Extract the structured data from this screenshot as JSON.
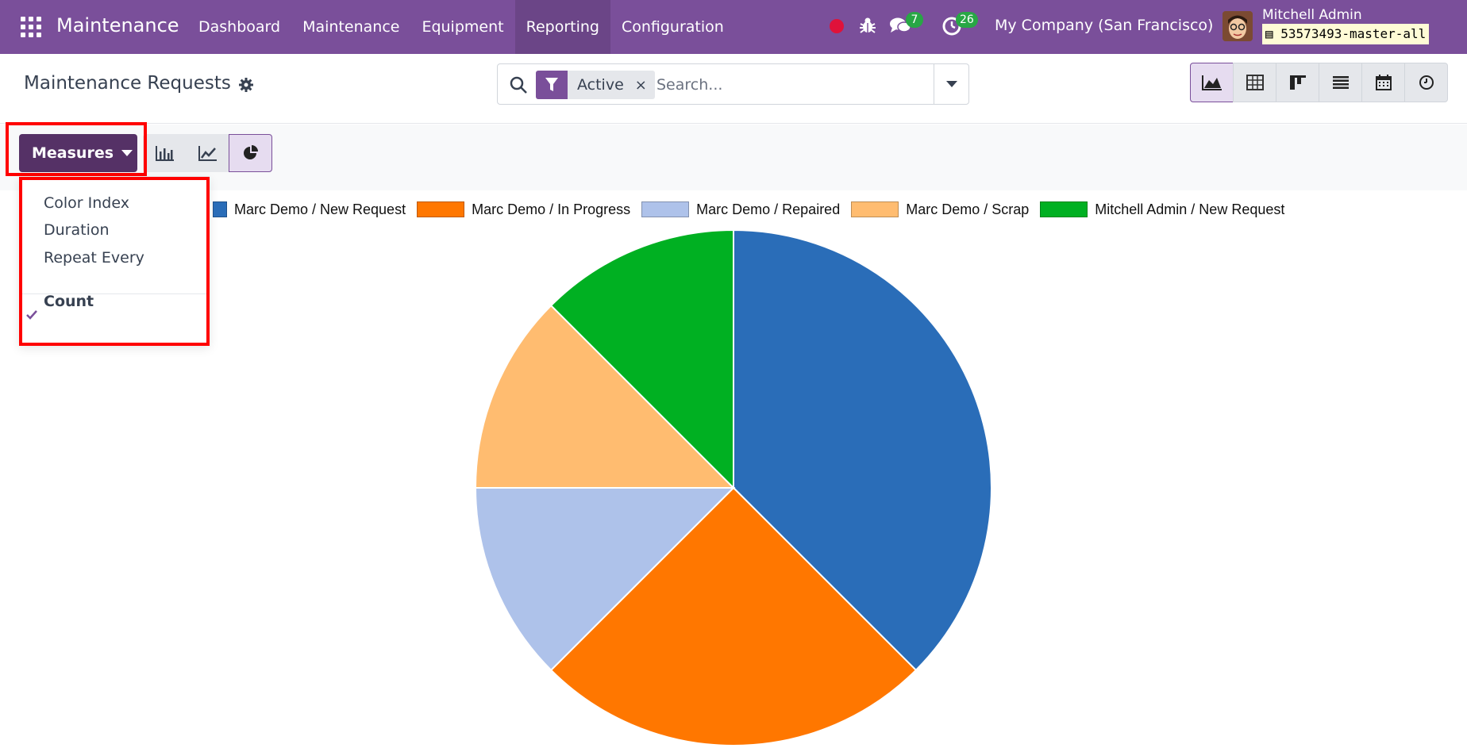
{
  "navbar": {
    "app_name": "Maintenance",
    "menu": [
      {
        "label": "Dashboard"
      },
      {
        "label": "Maintenance"
      },
      {
        "label": "Equipment"
      },
      {
        "label": "Reporting"
      },
      {
        "label": "Configuration"
      }
    ],
    "active_menu": "Reporting",
    "chat_count": "7",
    "activity_count": "26",
    "company": "My Company (San Francisco)",
    "user_name": "Mitchell Admin",
    "database": "53573493-master-all",
    "icons": [
      "apps-icon",
      "record-dot-icon",
      "bug-icon",
      "chat-icon",
      "activity-clock-icon",
      "avatar"
    ]
  },
  "control_panel": {
    "breadcrumb": "Maintenance Requests",
    "search": {
      "facet": "Active",
      "facet_remove": "×",
      "placeholder": "Search..."
    },
    "views": [
      "graph-view-icon",
      "pivot-view-icon",
      "kanban-view-icon",
      "list-view-icon",
      "calendar-view-icon",
      "activity-view-icon"
    ],
    "active_view": "graph-view-icon"
  },
  "toolbar": {
    "measures_label": "Measures",
    "chart_types": [
      "bar-chart-icon",
      "line-chart-icon",
      "pie-chart-icon"
    ],
    "active_chart_type": "pie-chart-icon"
  },
  "measures_dropdown": {
    "items": [
      {
        "label": "Color Index",
        "checked": false
      },
      {
        "label": "Duration",
        "checked": false
      },
      {
        "label": "Repeat Every",
        "checked": false
      }
    ],
    "selected": {
      "label": "Count",
      "checked": true
    }
  },
  "colors": {
    "navbar": "#7a4f9a",
    "highlight": "#ff0000"
  },
  "chart_data": {
    "type": "pie",
    "title": "",
    "categories": [
      "Marc Demo / New Request",
      "Marc Demo / In Progress",
      "Marc Demo / Repaired",
      "Marc Demo / Scrap",
      "Mitchell Admin / New Request"
    ],
    "values": [
      3,
      2,
      1,
      1,
      1
    ],
    "colors": [
      "#2a6db8",
      "#ff7700",
      "#aec2ea",
      "#ffbc70",
      "#00b022"
    ],
    "legend_position": "top"
  }
}
